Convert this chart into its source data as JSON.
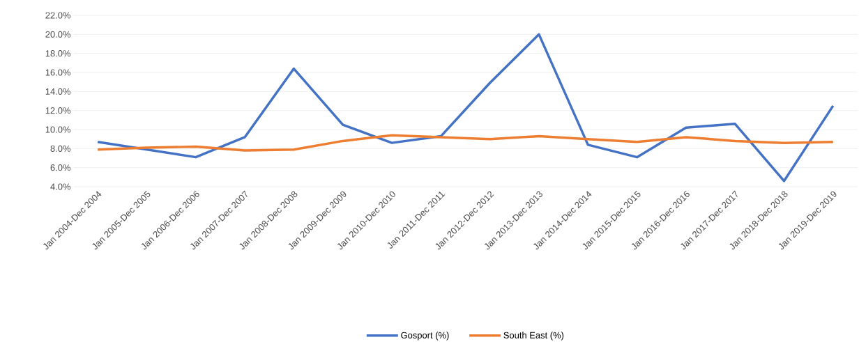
{
  "chart_data": {
    "type": "line",
    "categories": [
      "Jan 2004-Dec 2004",
      "Jan 2005-Dec 2005",
      "Jan 2006-Dec 2006",
      "Jan 2007-Dec 2007",
      "Jan 2008-Dec 2008",
      "Jan 2009-Dec 2009",
      "Jan 2010-Dec 2010",
      "Jan 2011-Dec 2011",
      "Jan 2012-Dec 2012",
      "Jan 2013-Dec 2013",
      "Jan 2014-Dec 2014",
      "Jan 2015-Dec 2015",
      "Jan 2016-Dec 2016",
      "Jan 2017-Dec 2017",
      "Jan 2018-Dec 2018",
      "Jan 2019-Dec 2019"
    ],
    "series": [
      {
        "name": "Gosport (%)",
        "color": "#4472c4",
        "values": [
          8.7,
          7.9,
          7.1,
          9.2,
          16.4,
          10.5,
          8.6,
          9.3,
          14.9,
          20.0,
          8.4,
          7.1,
          10.2,
          10.6,
          4.6,
          12.5
        ]
      },
      {
        "name": "South East (%)",
        "color": "#ed7d31",
        "values": [
          7.9,
          8.1,
          8.2,
          7.8,
          7.9,
          8.8,
          9.4,
          9.2,
          9.0,
          9.3,
          9.0,
          8.7,
          9.2,
          8.8,
          8.6,
          8.7
        ]
      }
    ],
    "ylim": [
      4,
      22
    ],
    "yticks": [
      {
        "value": 4,
        "label": "4.0%"
      },
      {
        "value": 6,
        "label": "6.0%"
      },
      {
        "value": 8,
        "label": "8.0%"
      },
      {
        "value": 10,
        "label": "10.0%"
      },
      {
        "value": 12,
        "label": "12.0%"
      },
      {
        "value": 14,
        "label": "14.0%"
      },
      {
        "value": 16,
        "label": "16.0%"
      },
      {
        "value": 18,
        "label": "18.0%"
      },
      {
        "value": 20,
        "label": "20.0%"
      },
      {
        "value": 22,
        "label": "22.0%"
      }
    ],
    "grid": "y",
    "legend": "bottom",
    "marker": "none",
    "line_style": "solid"
  }
}
